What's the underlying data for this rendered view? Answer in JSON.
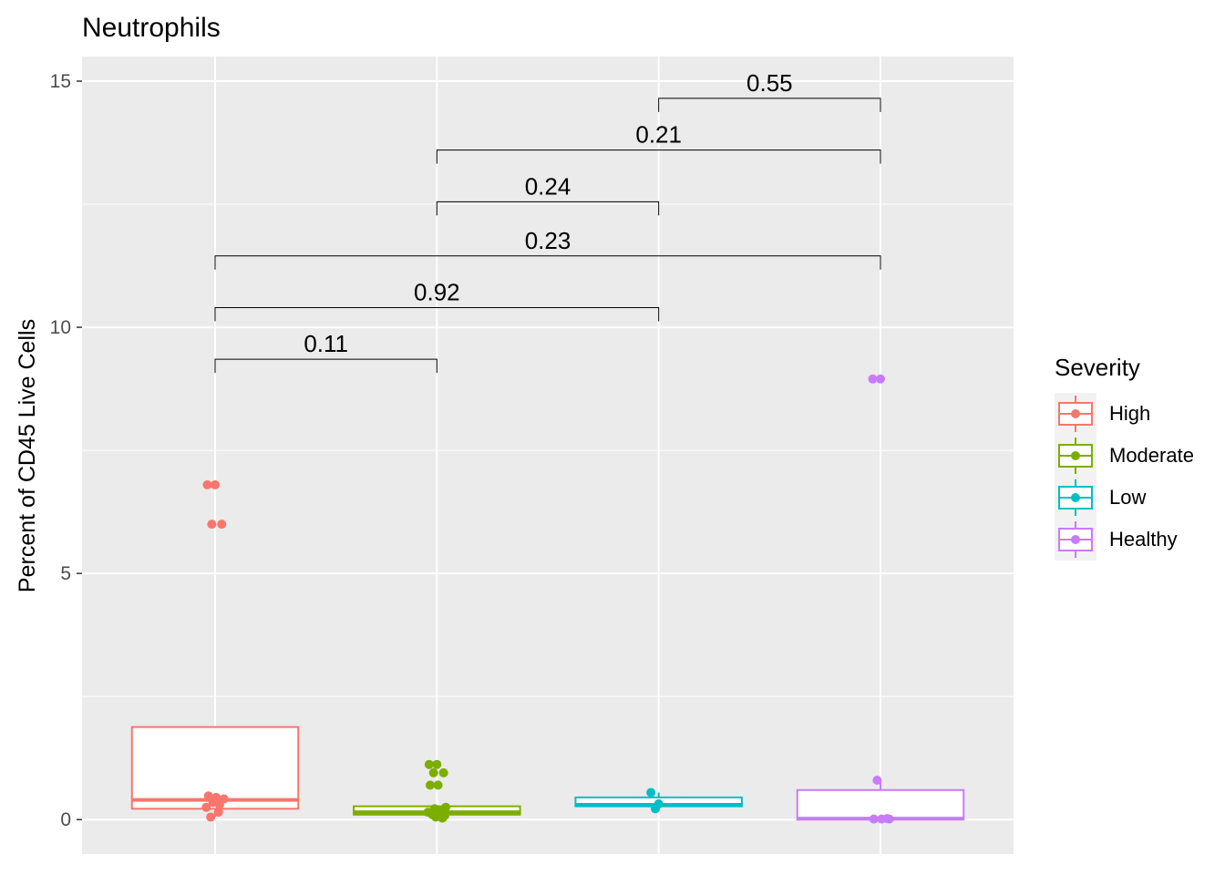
{
  "chart_data": {
    "type": "box",
    "title": "Neutrophils",
    "xlabel": "",
    "ylabel": "Percent of CD45 Live Cells",
    "ylim": [
      -0.7,
      15.5
    ],
    "yticks": [
      0,
      5,
      10,
      15
    ],
    "grid": true,
    "legend": {
      "title": "Severity",
      "position": "right"
    },
    "groups": [
      {
        "name": "High",
        "color": "#F8766D",
        "box": {
          "q1": 0.22,
          "median": 0.4,
          "q3": 1.88,
          "min": 0.05,
          "max": 1.88
        },
        "points": [
          6.8,
          6.8,
          6.0,
          6.0,
          0.48,
          0.45,
          0.42,
          0.35,
          0.3,
          0.25,
          0.15,
          0.05
        ]
      },
      {
        "name": "Moderate",
        "color": "#7CAE00",
        "box": {
          "q1": 0.1,
          "median": 0.15,
          "q3": 0.27,
          "min": 0.02,
          "max": 0.27
        },
        "points": [
          1.12,
          1.12,
          0.95,
          0.95,
          0.7,
          0.7,
          0.25,
          0.22,
          0.18,
          0.15,
          0.12,
          0.1,
          0.08,
          0.05,
          0.03
        ]
      },
      {
        "name": "Low",
        "color": "#00BFC4",
        "box": {
          "q1": 0.27,
          "median": 0.3,
          "q3": 0.45,
          "min": 0.22,
          "max": 0.55
        },
        "points": [
          0.55,
          0.32,
          0.22
        ]
      },
      {
        "name": "Healthy",
        "color": "#C77CFF",
        "box": {
          "q1": 0.0,
          "median": 0.02,
          "q3": 0.6,
          "min": 0.0,
          "max": 0.8
        },
        "points": [
          8.95,
          8.95,
          0.8,
          0.02,
          0.01,
          0.01,
          0.01
        ]
      }
    ],
    "comparisons": [
      {
        "from": 0,
        "to": 1,
        "label": "0.11",
        "y": 9.35
      },
      {
        "from": 0,
        "to": 2,
        "label": "0.92",
        "y": 10.4
      },
      {
        "from": 0,
        "to": 3,
        "label": "0.23",
        "y": 11.45
      },
      {
        "from": 1,
        "to": 2,
        "label": "0.24",
        "y": 12.55
      },
      {
        "from": 1,
        "to": 3,
        "label": "0.21",
        "y": 13.6
      },
      {
        "from": 2,
        "to": 3,
        "label": "0.55",
        "y": 14.65
      }
    ]
  }
}
